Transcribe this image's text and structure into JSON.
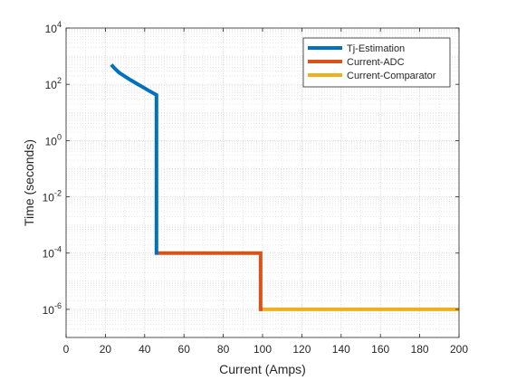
{
  "chart_data": {
    "type": "line",
    "title": "",
    "xlabel": "Current (Amps)",
    "ylabel": "Time (seconds)",
    "xlim": [
      0,
      200
    ],
    "ylim": [
      1e-07,
      10000
    ],
    "yscale": "log",
    "grid": true,
    "minor_grid": true,
    "legend_position": "top-right",
    "x_ticks": [
      {
        "value": 0,
        "label": "0"
      },
      {
        "value": 20,
        "label": "20"
      },
      {
        "value": 40,
        "label": "40"
      },
      {
        "value": 60,
        "label": "60"
      },
      {
        "value": 80,
        "label": "80"
      },
      {
        "value": 100,
        "label": "100"
      },
      {
        "value": 120,
        "label": "120"
      },
      {
        "value": 140,
        "label": "140"
      },
      {
        "value": 160,
        "label": "160"
      },
      {
        "value": 180,
        "label": "180"
      },
      {
        "value": 200,
        "label": "200"
      }
    ],
    "y_ticks": [
      {
        "value": 10000,
        "base": "10",
        "exp": "4"
      },
      {
        "value": 100,
        "base": "10",
        "exp": "2"
      },
      {
        "value": 1,
        "base": "10",
        "exp": "0"
      },
      {
        "value": 0.01,
        "base": "10",
        "exp": "-2"
      },
      {
        "value": 0.0001,
        "base": "10",
        "exp": "-4"
      },
      {
        "value": 1e-06,
        "base": "10",
        "exp": "-6"
      }
    ],
    "series": [
      {
        "name": "Tj-Estimation",
        "color": "#0072BD",
        "x": [
          23,
          25,
          27,
          30,
          33,
          36,
          39,
          42,
          44,
          46,
          46,
          47
        ],
        "y": [
          500,
          350,
          260,
          190,
          140,
          105,
          80,
          60,
          50,
          42,
          0.0001,
          0.0001
        ]
      },
      {
        "name": "Current-ADC",
        "color": "#D95319",
        "x": [
          47,
          99,
          99,
          100
        ],
        "y": [
          0.0001,
          0.0001,
          1e-06,
          1e-06
        ]
      },
      {
        "name": "Current-Comparator",
        "color": "#EDB120",
        "x": [
          100,
          200
        ],
        "y": [
          1e-06,
          1e-06
        ]
      }
    ]
  }
}
